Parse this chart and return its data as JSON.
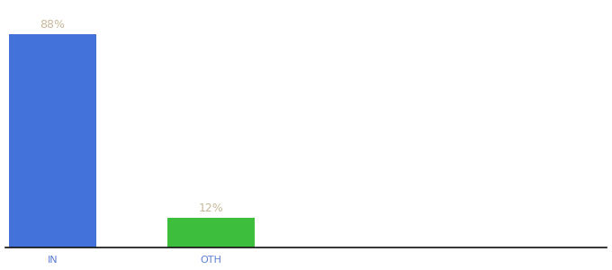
{
  "categories": [
    "IN",
    "OTH"
  ],
  "values": [
    88,
    12
  ],
  "bar_colors": [
    "#4472db",
    "#3dbf3d"
  ],
  "label_texts": [
    "88%",
    "12%"
  ],
  "label_color": "#c8b89a",
  "label_fontsize": 9,
  "tick_fontsize": 8,
  "tick_color": "#5b7fd4",
  "background_color": "#ffffff",
  "ylim": [
    0,
    100
  ],
  "bar_width": 0.55,
  "figsize": [
    6.8,
    3.0
  ],
  "dpi": 100,
  "spine_color": "#111111",
  "xlim": [
    -0.3,
    3.5
  ]
}
